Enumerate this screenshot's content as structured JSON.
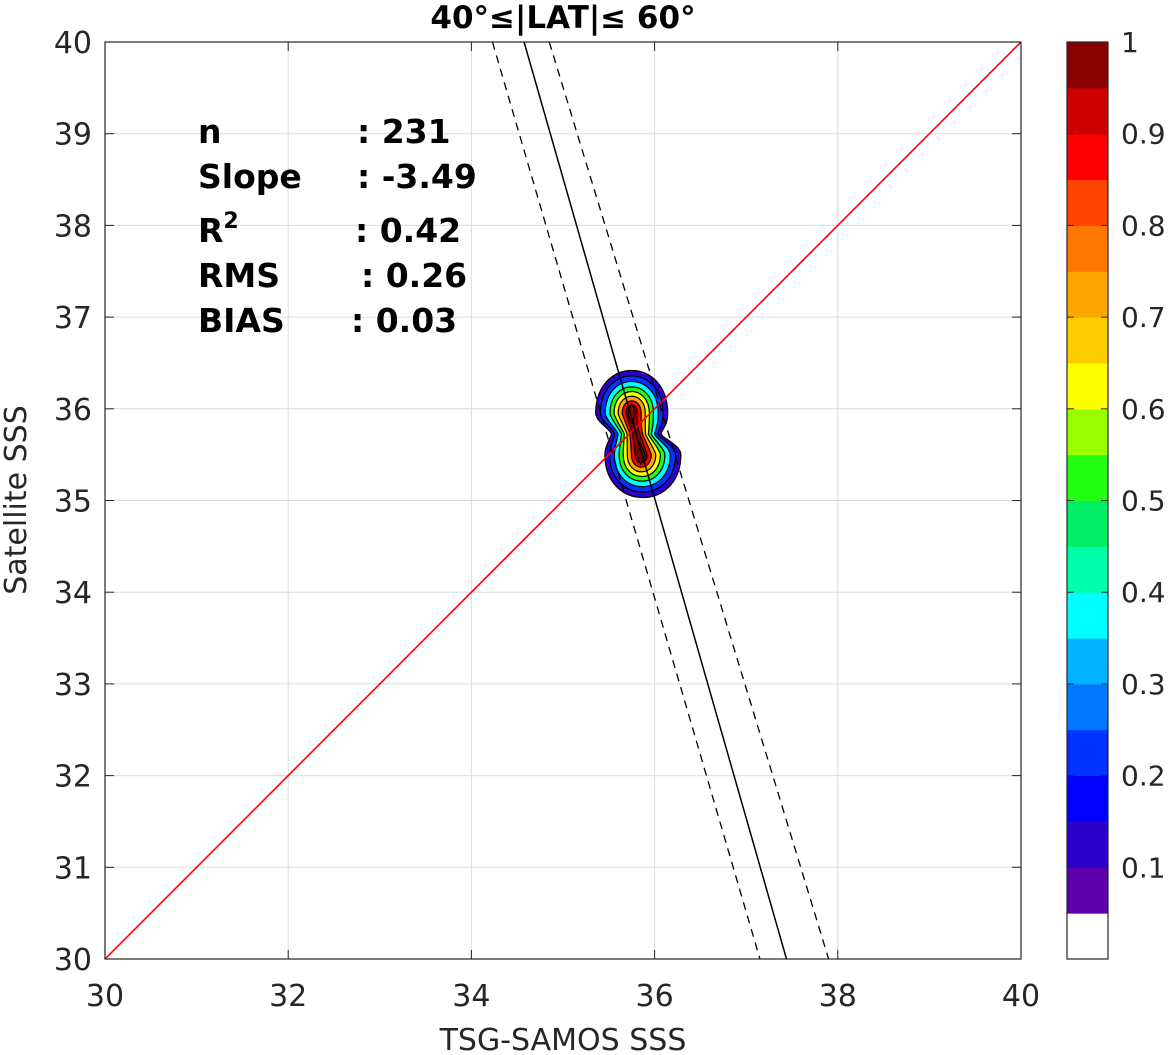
{
  "chart_data": {
    "type": "contour-scatter",
    "title": "40°≤|LAT|≤ 60°",
    "xlabel": "TSG-SAMOS SSS",
    "ylabel": "Satellite SSS",
    "xlim": [
      30,
      40
    ],
    "ylim": [
      30,
      40
    ],
    "xticks": [
      "30",
      "32",
      "34",
      "36",
      "38",
      "40"
    ],
    "yticks": [
      "30",
      "31",
      "32",
      "33",
      "34",
      "35",
      "36",
      "37",
      "38",
      "39",
      "40"
    ],
    "grid": true,
    "stats": [
      {
        "label": "n",
        "sep": ":",
        "value": "231"
      },
      {
        "label": "Slope",
        "sep": ":",
        "value": "-3.49"
      },
      {
        "label": "R",
        "sup": "2",
        "sep": ":",
        "value": "0.42"
      },
      {
        "label": "RMS",
        "sep": ":",
        "value": "0.26"
      },
      {
        "label": "BIAS",
        "sep": ":",
        "value": "0.03"
      }
    ],
    "identity_line": {
      "color": "#ff0000",
      "from": [
        30,
        30
      ],
      "to": [
        40,
        40
      ]
    },
    "regression": {
      "color": "#000000",
      "fit": {
        "from": [
          34.575,
          40
        ],
        "to": [
          37.44,
          30
        ]
      },
      "upper_bound": {
        "from": [
          34.85,
          40
        ],
        "to": [
          37.9,
          30
        ]
      },
      "lower_bound": {
        "from": [
          34.23,
          40
        ],
        "to": [
          37.15,
          30
        ]
      }
    },
    "density_peaks": [
      {
        "x": 35.75,
        "y": 35.95
      },
      {
        "x": 35.85,
        "y": 35.5
      }
    ],
    "colorbar": {
      "ticks": [
        "0.1",
        "0.2",
        "0.3",
        "0.4",
        "0.5",
        "0.6",
        "0.7",
        "0.8",
        "0.9",
        "1"
      ],
      "colors": [
        "#ffffff",
        "#5b00aa",
        "#2e00cc",
        "#0000ff",
        "#0033ff",
        "#0077ff",
        "#00b2ff",
        "#00ffff",
        "#00ffaa",
        "#00ee66",
        "#22ff11",
        "#99ff00",
        "#ffff00",
        "#ffcc00",
        "#ffa500",
        "#ff7700",
        "#ff4400",
        "#ff0000",
        "#cc0000",
        "#880000"
      ]
    }
  }
}
